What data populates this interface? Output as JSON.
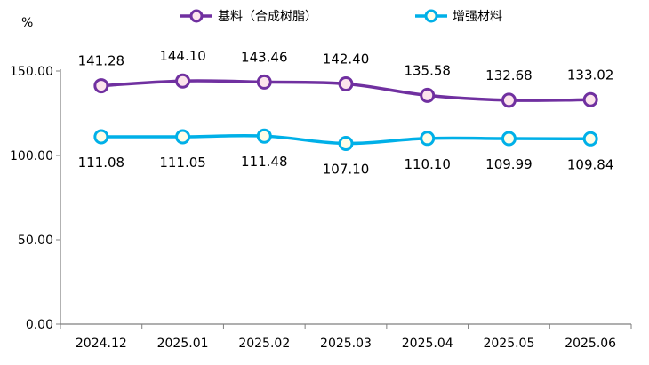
{
  "chart_data": {
    "type": "line",
    "ylabel": "%",
    "categories": [
      "2024.12",
      "2025.01",
      "2025.02",
      "2025.03",
      "2025.04",
      "2025.05",
      "2025.06"
    ],
    "ylim": [
      0,
      150
    ],
    "yticks": [
      "0.00",
      "50.00",
      "100.00",
      "150.00"
    ],
    "legend_position": "top",
    "grid": false,
    "series": [
      {
        "name": "基料（合成树脂）",
        "color": "#7030A0",
        "marker_fill": "#FCE4EC",
        "values": [
          141.28,
          144.1,
          143.46,
          142.4,
          135.58,
          132.68,
          133.02
        ],
        "labels": [
          "141.28",
          "144.10",
          "143.46",
          "142.40",
          "135.58",
          "132.68",
          "133.02"
        ],
        "label_position": "above"
      },
      {
        "name": "增强材料",
        "color": "#00B0E8",
        "marker_fill": "#FFFDE7",
        "values": [
          111.08,
          111.05,
          111.48,
          107.1,
          110.1,
          109.99,
          109.84
        ],
        "labels": [
          "111.08",
          "111.05",
          "111.48",
          "107.10",
          "110.10",
          "109.99",
          "109.84"
        ],
        "label_position": "below"
      }
    ]
  }
}
